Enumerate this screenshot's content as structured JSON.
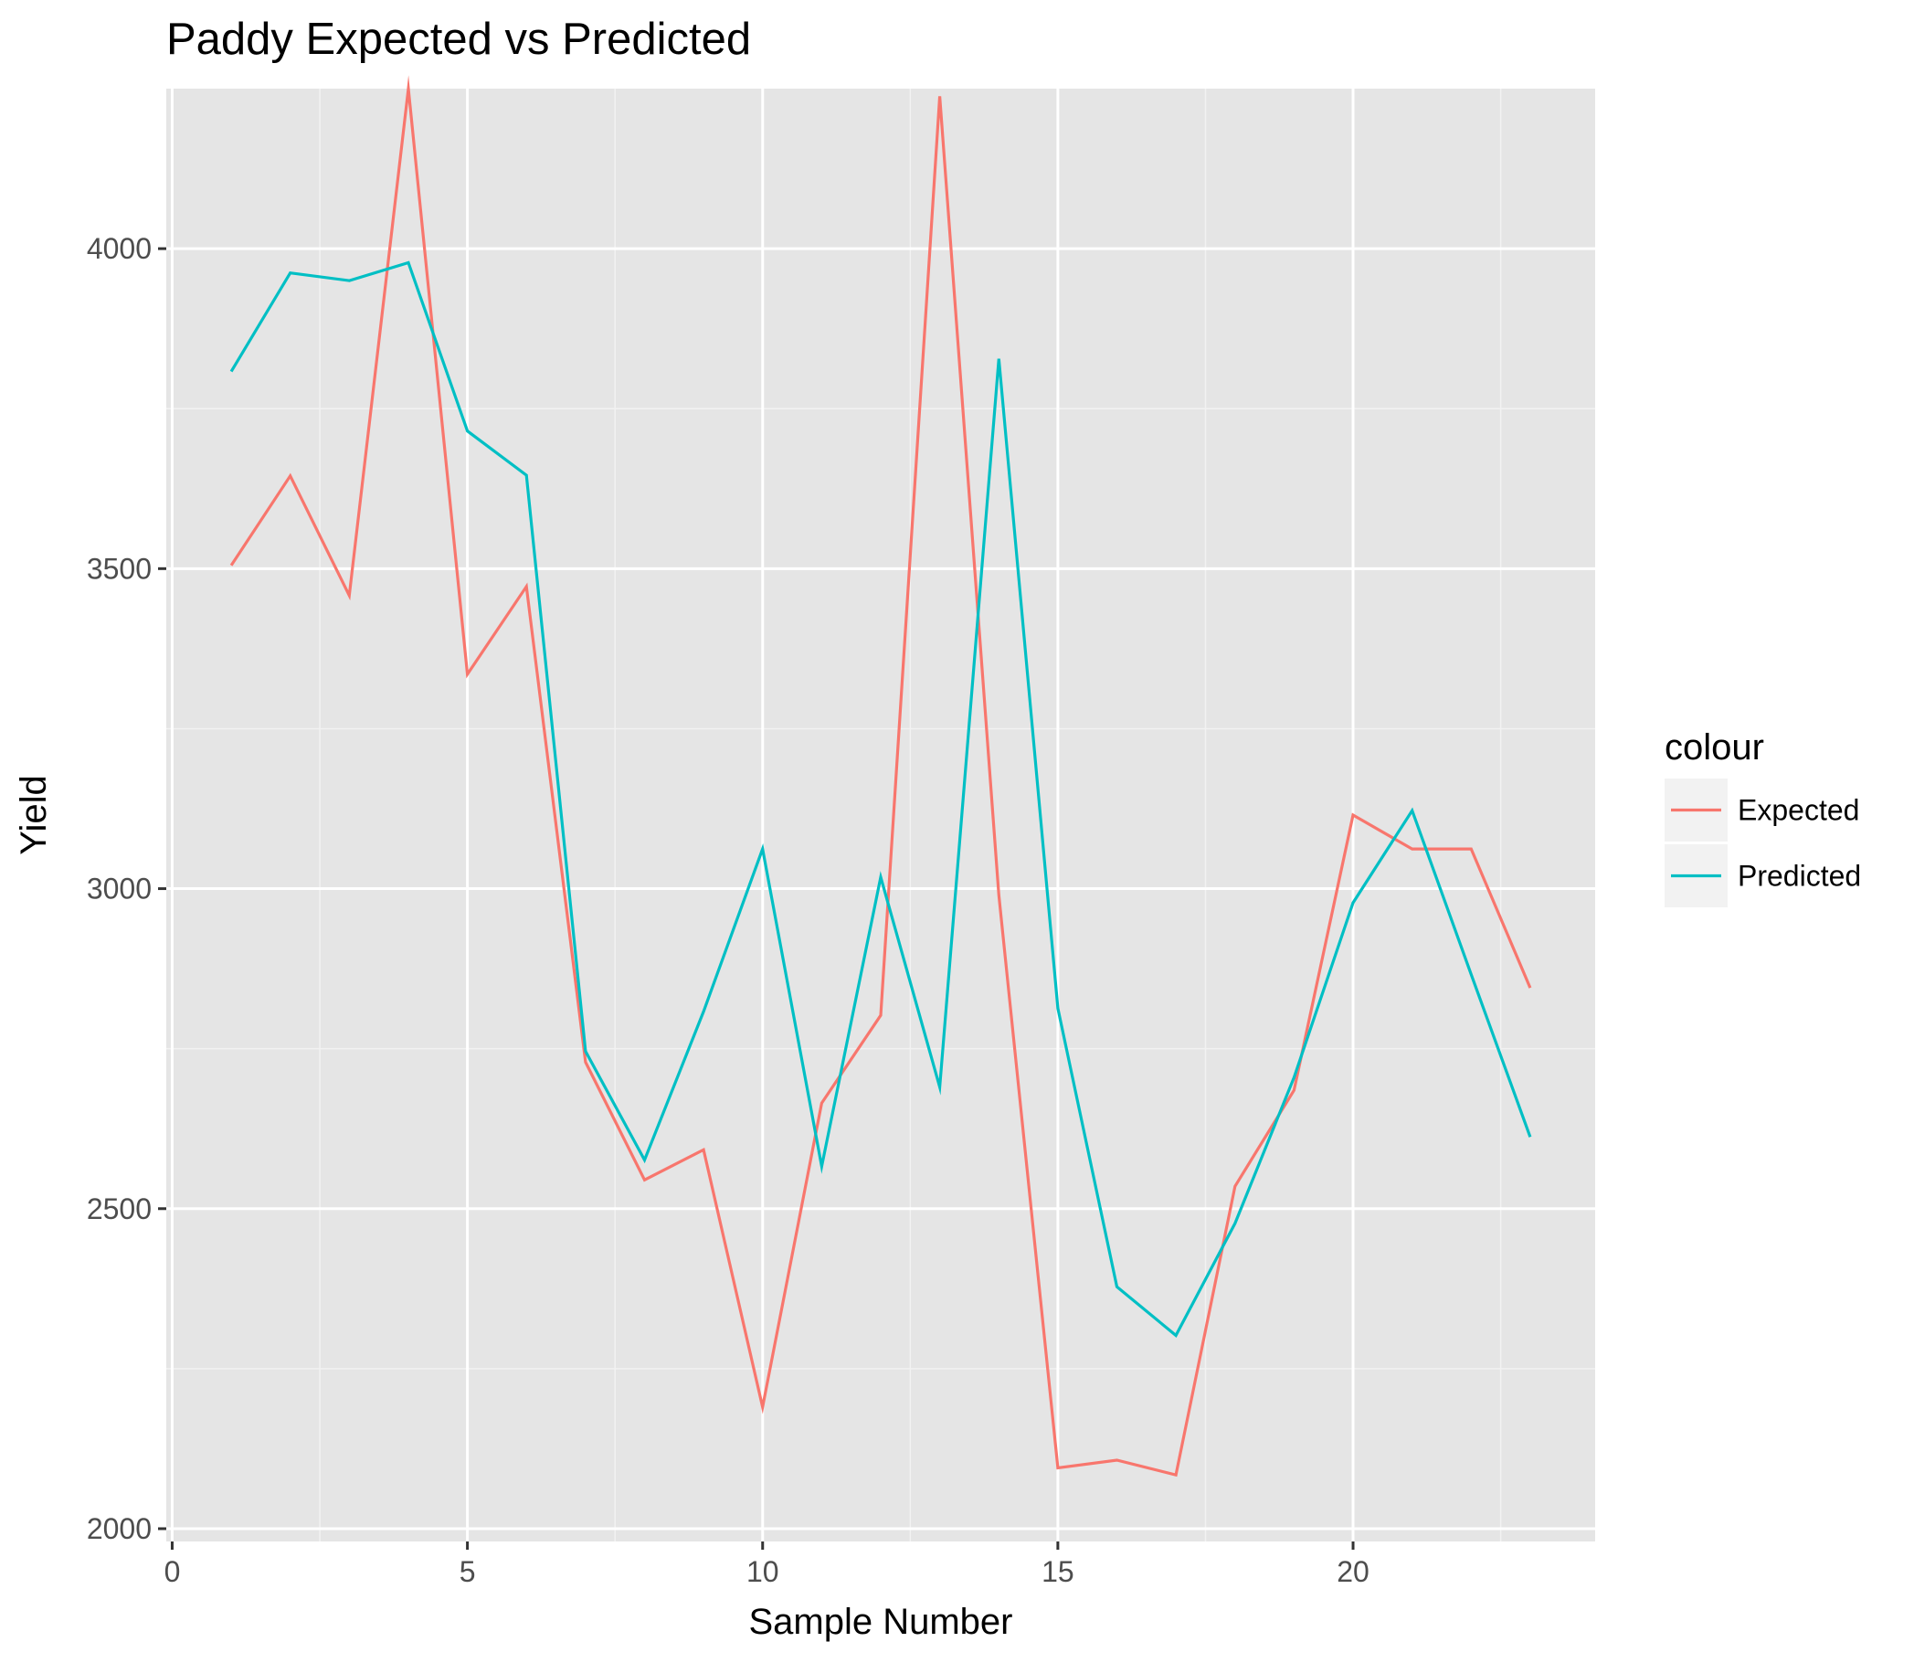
{
  "chart_data": {
    "type": "line",
    "title": "Paddy Expected vs Predicted",
    "xlabel": "Sample Number",
    "ylabel": "Yield",
    "xlim": [
      -0.1,
      24.1
    ],
    "ylim": [
      1980,
      4250
    ],
    "x_ticks": [
      0,
      5,
      10,
      15,
      20
    ],
    "x_tick_labels": [
      "0",
      "5",
      "10",
      "15",
      "20"
    ],
    "y_ticks": [
      2000,
      2500,
      3000,
      3500,
      4000
    ],
    "y_tick_labels": [
      "2000",
      "2500",
      "3000",
      "3500",
      "4000"
    ],
    "grid": true,
    "legend": {
      "title": "colour",
      "position": "right"
    },
    "x": [
      1,
      2,
      3,
      4,
      5,
      6,
      7,
      8,
      9,
      10,
      11,
      12,
      13,
      14,
      15,
      16,
      17,
      18,
      19,
      20,
      21,
      22,
      23
    ],
    "series": [
      {
        "name": "Expected",
        "color": "#F8766D",
        "values": [
          3505,
          3645,
          3458,
          4250,
          3335,
          3472,
          2729,
          2545,
          2592,
          2190,
          2665,
          2802,
          4238,
          2990,
          2095,
          2107,
          2084,
          2535,
          2685,
          3115,
          3062,
          3062,
          2845
        ]
      },
      {
        "name": "Predicted",
        "color": "#00BFC4",
        "values": [
          3808,
          3962,
          3950,
          3978,
          3715,
          3646,
          2746,
          2576,
          2808,
          3062,
          2566,
          3018,
          2690,
          3828,
          2813,
          2378,
          2302,
          2477,
          2705,
          2978,
          3122,
          2866,
          2612
        ]
      }
    ]
  }
}
